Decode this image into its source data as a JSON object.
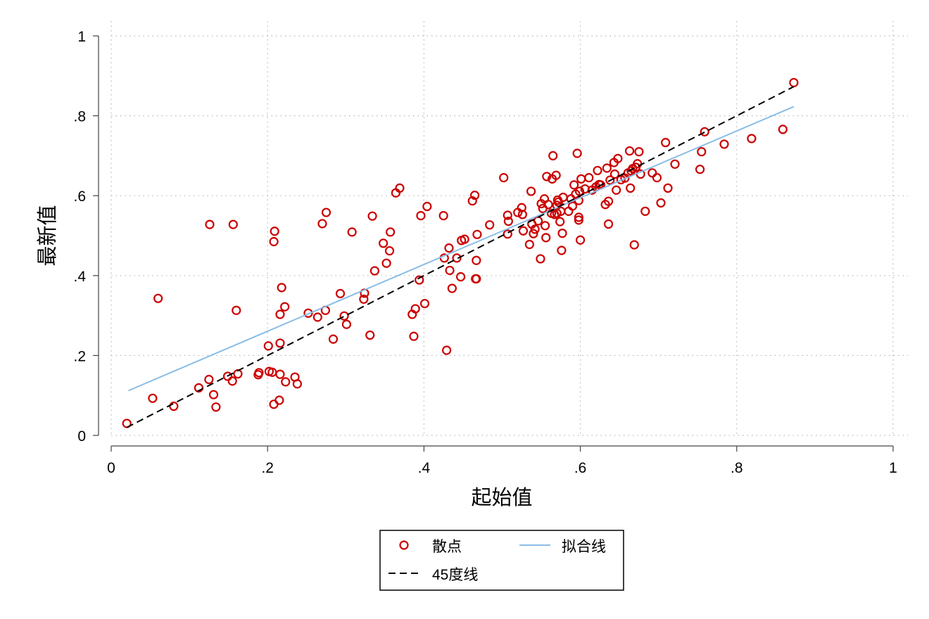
{
  "chart_data": {
    "type": "scatter",
    "xlabel": "起始值",
    "ylabel": "最新值",
    "xlim": [
      0,
      1
    ],
    "ylim": [
      0,
      1
    ],
    "xticks": [
      "0",
      ".2",
      ".4",
      ".6",
      ".8",
      "1"
    ],
    "yticks": [
      "0",
      ".2",
      ".4",
      ".6",
      ".8",
      "1"
    ],
    "grid": "dotted-major",
    "legend_position": "bottom",
    "colors": {
      "scatter": "#cc0000",
      "fit": "#89bde6",
      "diagonal": "#000000"
    },
    "series": [
      {
        "name": "散点",
        "kind": "scatter",
        "points": [
          [
            0.02,
            0.03
          ],
          [
            0.053,
            0.093
          ],
          [
            0.06,
            0.343
          ],
          [
            0.08,
            0.073
          ],
          [
            0.112,
            0.119
          ],
          [
            0.125,
            0.14
          ],
          [
            0.126,
            0.528
          ],
          [
            0.131,
            0.102
          ],
          [
            0.134,
            0.071
          ],
          [
            0.149,
            0.148
          ],
          [
            0.155,
            0.136
          ],
          [
            0.156,
            0.528
          ],
          [
            0.16,
            0.313
          ],
          [
            0.162,
            0.154
          ],
          [
            0.188,
            0.152
          ],
          [
            0.189,
            0.157
          ],
          [
            0.201,
            0.224
          ],
          [
            0.202,
            0.16
          ],
          [
            0.206,
            0.158
          ],
          [
            0.208,
            0.485
          ],
          [
            0.208,
            0.078
          ],
          [
            0.209,
            0.511
          ],
          [
            0.215,
            0.088
          ],
          [
            0.216,
            0.303
          ],
          [
            0.216,
            0.231
          ],
          [
            0.216,
            0.153
          ],
          [
            0.218,
            0.37
          ],
          [
            0.222,
            0.322
          ],
          [
            0.223,
            0.134
          ],
          [
            0.235,
            0.146
          ],
          [
            0.238,
            0.129
          ],
          [
            0.252,
            0.306
          ],
          [
            0.264,
            0.296
          ],
          [
            0.27,
            0.53
          ],
          [
            0.274,
            0.313
          ],
          [
            0.275,
            0.558
          ],
          [
            0.284,
            0.241
          ],
          [
            0.293,
            0.355
          ],
          [
            0.298,
            0.299
          ],
          [
            0.301,
            0.278
          ],
          [
            0.308,
            0.509
          ],
          [
            0.323,
            0.341
          ],
          [
            0.324,
            0.356
          ],
          [
            0.331,
            0.251
          ],
          [
            0.334,
            0.549
          ],
          [
            0.337,
            0.412
          ],
          [
            0.348,
            0.481
          ],
          [
            0.352,
            0.431
          ],
          [
            0.356,
            0.462
          ],
          [
            0.357,
            0.509
          ],
          [
            0.364,
            0.607
          ],
          [
            0.369,
            0.619
          ],
          [
            0.385,
            0.303
          ],
          [
            0.387,
            0.248
          ],
          [
            0.389,
            0.317
          ],
          [
            0.394,
            0.389
          ],
          [
            0.396,
            0.55
          ],
          [
            0.401,
            0.33
          ],
          [
            0.404,
            0.573
          ],
          [
            0.425,
            0.55
          ],
          [
            0.426,
            0.444
          ],
          [
            0.429,
            0.213
          ],
          [
            0.432,
            0.469
          ],
          [
            0.433,
            0.413
          ],
          [
            0.436,
            0.368
          ],
          [
            0.442,
            0.444
          ],
          [
            0.447,
            0.397
          ],
          [
            0.448,
            0.488
          ],
          [
            0.452,
            0.491
          ],
          [
            0.462,
            0.587
          ],
          [
            0.465,
            0.601
          ],
          [
            0.466,
            0.392
          ],
          [
            0.467,
            0.438
          ],
          [
            0.467,
            0.392
          ],
          [
            0.468,
            0.503
          ],
          [
            0.484,
            0.527
          ],
          [
            0.502,
            0.645
          ],
          [
            0.507,
            0.504
          ],
          [
            0.507,
            0.551
          ],
          [
            0.508,
            0.536
          ],
          [
            0.52,
            0.558
          ],
          [
            0.525,
            0.57
          ],
          [
            0.526,
            0.553
          ],
          [
            0.527,
            0.512
          ],
          [
            0.535,
            0.478
          ],
          [
            0.537,
            0.611
          ],
          [
            0.538,
            0.529
          ],
          [
            0.54,
            0.505
          ],
          [
            0.542,
            0.516
          ],
          [
            0.546,
            0.537
          ],
          [
            0.549,
            0.442
          ],
          [
            0.55,
            0.58
          ],
          [
            0.552,
            0.568
          ],
          [
            0.554,
            0.592
          ],
          [
            0.555,
            0.525
          ],
          [
            0.556,
            0.495
          ],
          [
            0.557,
            0.648
          ],
          [
            0.559,
            0.578
          ],
          [
            0.563,
            0.556
          ],
          [
            0.564,
            0.642
          ],
          [
            0.565,
            0.7
          ],
          [
            0.567,
            0.553
          ],
          [
            0.569,
            0.651
          ],
          [
            0.57,
            0.576
          ],
          [
            0.57,
            0.556
          ],
          [
            0.571,
            0.589
          ],
          [
            0.572,
            0.584
          ],
          [
            0.574,
            0.535
          ],
          [
            0.575,
            0.561
          ],
          [
            0.576,
            0.463
          ],
          [
            0.577,
            0.506
          ],
          [
            0.578,
            0.596
          ],
          [
            0.585,
            0.561
          ],
          [
            0.588,
            0.592
          ],
          [
            0.59,
            0.574
          ],
          [
            0.592,
            0.627
          ],
          [
            0.594,
            0.604
          ],
          [
            0.596,
            0.706
          ],
          [
            0.598,
            0.539
          ],
          [
            0.598,
            0.588
          ],
          [
            0.598,
            0.546
          ],
          [
            0.599,
            0.611
          ],
          [
            0.6,
            0.489
          ],
          [
            0.601,
            0.642
          ],
          [
            0.606,
            0.617
          ],
          [
            0.611,
            0.645
          ],
          [
            0.615,
            0.614
          ],
          [
            0.62,
            0.622
          ],
          [
            0.622,
            0.663
          ],
          [
            0.624,
            0.628
          ],
          [
            0.626,
            0.627
          ],
          [
            0.632,
            0.578
          ],
          [
            0.634,
            0.669
          ],
          [
            0.636,
            0.586
          ],
          [
            0.636,
            0.529
          ],
          [
            0.638,
            0.639
          ],
          [
            0.643,
            0.683
          ],
          [
            0.644,
            0.654
          ],
          [
            0.646,
            0.614
          ],
          [
            0.648,
            0.693
          ],
          [
            0.652,
            0.64
          ],
          [
            0.657,
            0.644
          ],
          [
            0.661,
            0.657
          ],
          [
            0.663,
            0.712
          ],
          [
            0.664,
            0.619
          ],
          [
            0.665,
            0.662
          ],
          [
            0.667,
            0.668
          ],
          [
            0.669,
            0.477
          ],
          [
            0.671,
            0.671
          ],
          [
            0.673,
            0.68
          ],
          [
            0.675,
            0.71
          ],
          [
            0.677,
            0.654
          ],
          [
            0.683,
            0.561
          ],
          [
            0.692,
            0.657
          ],
          [
            0.698,
            0.645
          ],
          [
            0.703,
            0.582
          ],
          [
            0.709,
            0.733
          ],
          [
            0.712,
            0.619
          ],
          [
            0.721,
            0.679
          ],
          [
            0.753,
            0.666
          ],
          [
            0.755,
            0.71
          ],
          [
            0.759,
            0.76
          ],
          [
            0.784,
            0.729
          ],
          [
            0.819,
            0.743
          ],
          [
            0.859,
            0.766
          ],
          [
            0.873,
            0.883
          ]
        ]
      },
      {
        "name": "拟合线",
        "kind": "line",
        "points": [
          [
            0.022,
            0.112
          ],
          [
            0.873,
            0.823
          ]
        ]
      },
      {
        "name": "45度线",
        "kind": "line-dashed",
        "points": [
          [
            0.02,
            0.02
          ],
          [
            0.873,
            0.873
          ]
        ]
      }
    ]
  }
}
